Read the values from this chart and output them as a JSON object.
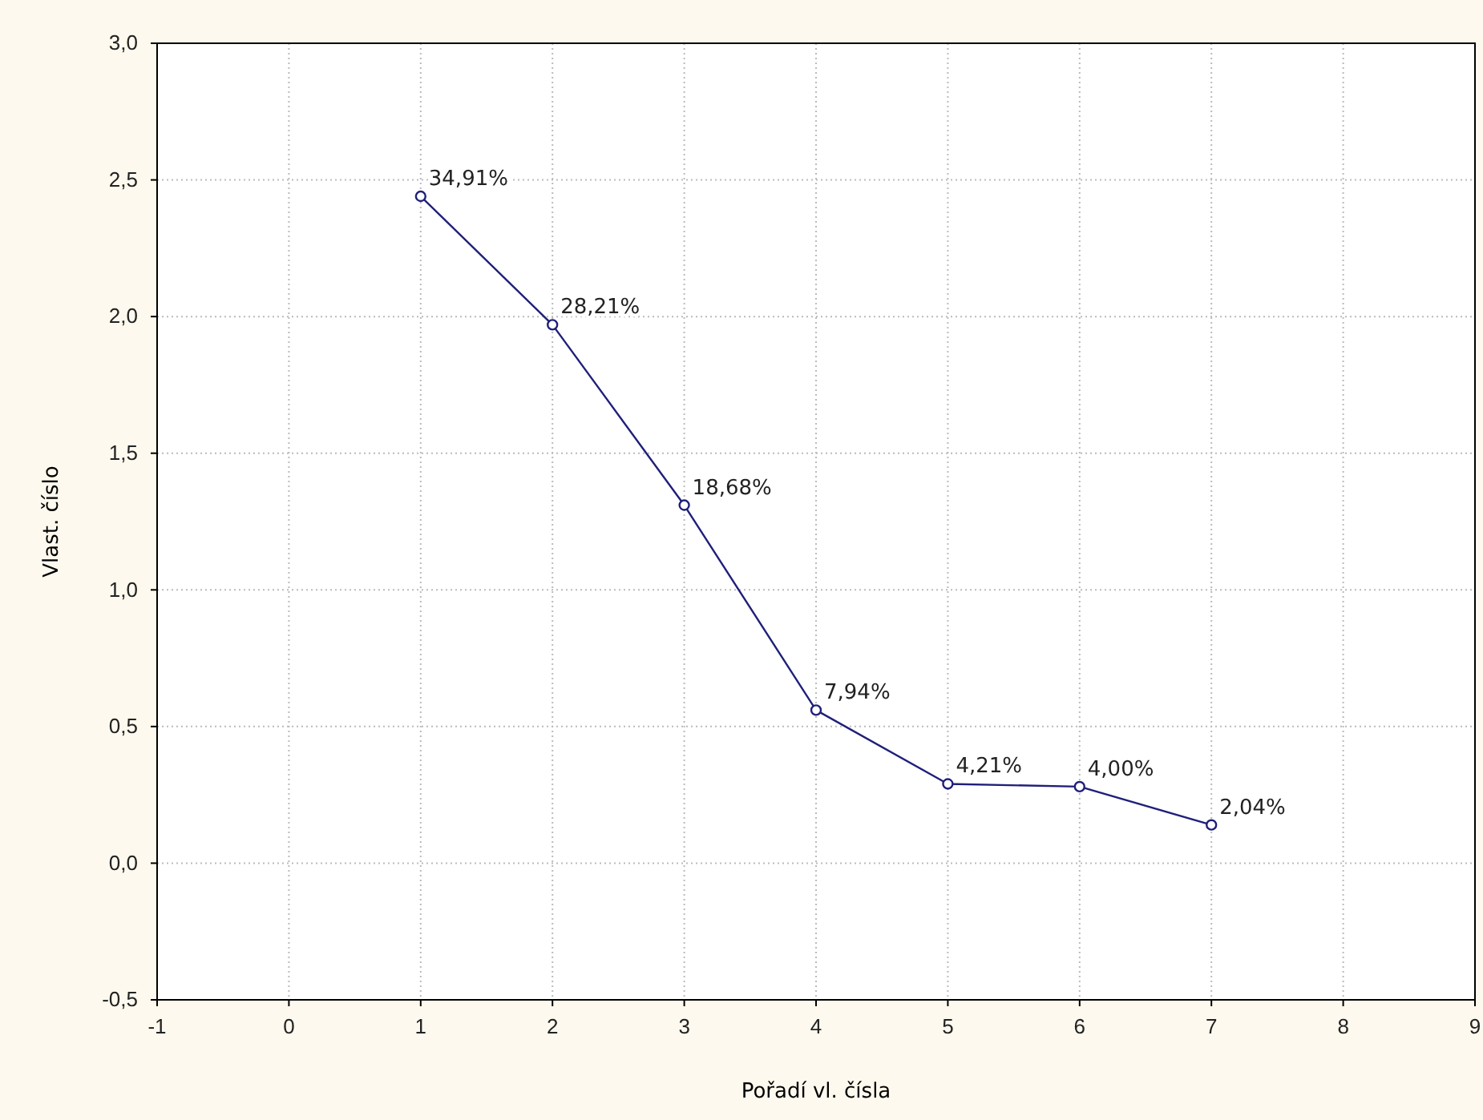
{
  "chart_data": {
    "type": "line",
    "xlabel": "Pořadí vl. čísla",
    "ylabel": "Vlast. číslo",
    "x": [
      1,
      2,
      3,
      4,
      5,
      6,
      7
    ],
    "series": [
      {
        "color": "#1f1f7a",
        "values": [
          2.44,
          1.97,
          1.31,
          0.56,
          0.29,
          0.28,
          0.14
        ]
      }
    ],
    "annotations": [
      {
        "text": "34,91%",
        "x": 1,
        "y": 2.44
      },
      {
        "text": "28,21%",
        "x": 2,
        "y": 1.97
      },
      {
        "text": "18,68%",
        "x": 3,
        "y": 1.31
      },
      {
        "text": "7,94%",
        "x": 4,
        "y": 0.56
      },
      {
        "text": "4,21%",
        "x": 5,
        "y": 0.29
      },
      {
        "text": "4,00%",
        "x": 6,
        "y": 0.28
      },
      {
        "text": "2,04%",
        "x": 7,
        "y": 0.14
      }
    ],
    "xlim": [
      -1,
      9
    ],
    "xticks": [
      -1,
      0,
      1,
      2,
      3,
      4,
      5,
      6,
      7,
      8,
      9
    ],
    "ylim": [
      -0.5,
      3
    ],
    "yticks": [
      {
        "value": -0.5,
        "label": "-0,5"
      },
      {
        "value": 0,
        "label": "0,0"
      },
      {
        "value": 0.5,
        "label": "0,5"
      },
      {
        "value": 1,
        "label": "1,0"
      },
      {
        "value": 1.5,
        "label": "1,5"
      },
      {
        "value": 2,
        "label": "2,0"
      },
      {
        "value": 2.5,
        "label": "2,5"
      },
      {
        "value": 3,
        "label": "3,0"
      }
    ],
    "grid": true,
    "marker": "circle",
    "line_style": "solid"
  }
}
